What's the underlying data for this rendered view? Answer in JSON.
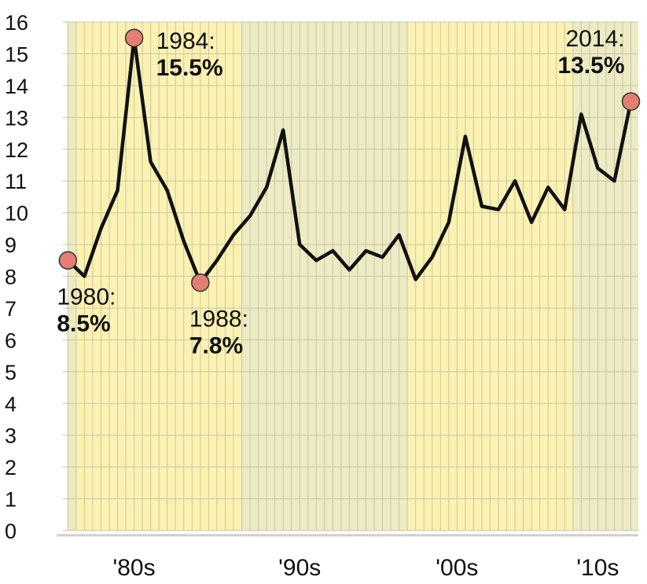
{
  "chart_data": {
    "type": "line",
    "title": "",
    "xlabel": "",
    "ylabel": "",
    "ylim": [
      0,
      16
    ],
    "xlim": [
      1980,
      2014
    ],
    "grid": true,
    "y_ticks": [
      "0",
      "1",
      "2",
      "3",
      "4",
      "5",
      "6",
      "7",
      "8",
      "9",
      "10",
      "11",
      "12",
      "13",
      "14",
      "15",
      "16"
    ],
    "x_tick_labels": [
      {
        "label": "'80s",
        "x": 1984
      },
      {
        "label": "'90s",
        "x": 1994
      },
      {
        "label": "'00s",
        "x": 2003.5
      },
      {
        "label": "'10s",
        "x": 2012
      }
    ],
    "decade_bands": [
      {
        "from": 1980,
        "to": 1980.5,
        "color": "#ecebc3"
      },
      {
        "from": 1980.5,
        "to": 1990.5,
        "color": "#fbf2b2"
      },
      {
        "from": 1990.5,
        "to": 2000.5,
        "color": "#ecebc3"
      },
      {
        "from": 2000.5,
        "to": 2010.5,
        "color": "#fbf2b2"
      },
      {
        "from": 2010.5,
        "to": 2014.5,
        "color": "#ecebc3"
      }
    ],
    "series": [
      {
        "x": [
          1980,
          1981,
          1982,
          1983,
          1984,
          1985,
          1986,
          1987,
          1988,
          1989,
          1990,
          1991,
          1992,
          1993,
          1994,
          1995,
          1996,
          1997,
          1998,
          1999,
          2000,
          2001,
          2002,
          2003,
          2004,
          2005,
          2006,
          2007,
          2008,
          2009,
          2010,
          2011,
          2012,
          2013,
          2014
        ],
        "values": [
          8.5,
          8.0,
          9.5,
          10.7,
          15.5,
          11.6,
          10.7,
          9.1,
          7.8,
          8.5,
          9.3,
          9.9,
          10.8,
          12.6,
          9.0,
          8.5,
          8.8,
          8.2,
          8.8,
          8.6,
          9.3,
          7.9,
          8.6,
          9.7,
          12.4,
          10.2,
          10.1,
          11.0,
          9.7,
          10.8,
          10.1,
          13.1,
          11.4,
          11.0,
          13.5
        ],
        "color": "#111111"
      }
    ],
    "annotations": [
      {
        "x": 1980,
        "y": 8.5,
        "year": "1980:",
        "value": "8.5%",
        "placement": "below"
      },
      {
        "x": 1984,
        "y": 15.5,
        "year": "1984:",
        "value": "15.5%",
        "placement": "right"
      },
      {
        "x": 1988,
        "y": 7.8,
        "year": "1988:",
        "value": "7.8%",
        "placement": "below"
      },
      {
        "x": 2014,
        "y": 13.5,
        "year": "2014:",
        "value": "13.5%",
        "placement": "left-above"
      }
    ],
    "marker_color": "#e27f72"
  }
}
